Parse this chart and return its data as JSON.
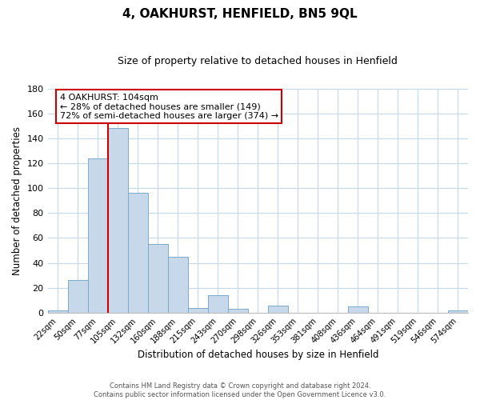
{
  "title": "4, OAKHURST, HENFIELD, BN5 9QL",
  "subtitle": "Size of property relative to detached houses in Henfield",
  "xlabel": "Distribution of detached houses by size in Henfield",
  "ylabel": "Number of detached properties",
  "bar_labels": [
    "22sqm",
    "50sqm",
    "77sqm",
    "105sqm",
    "132sqm",
    "160sqm",
    "188sqm",
    "215sqm",
    "243sqm",
    "270sqm",
    "298sqm",
    "326sqm",
    "353sqm",
    "381sqm",
    "408sqm",
    "436sqm",
    "464sqm",
    "491sqm",
    "519sqm",
    "546sqm",
    "574sqm"
  ],
  "bar_values": [
    2,
    26,
    124,
    148,
    96,
    55,
    45,
    4,
    14,
    3,
    0,
    6,
    0,
    0,
    0,
    5,
    0,
    0,
    0,
    0,
    2
  ],
  "bar_color": "#c8d8eb",
  "bar_edge_color": "#7aaacb",
  "vline_index": 3,
  "vline_color": "#cc0000",
  "ylim": [
    0,
    180
  ],
  "yticks": [
    0,
    20,
    40,
    60,
    80,
    100,
    120,
    140,
    160,
    180
  ],
  "annotation_text": "4 OAKHURST: 104sqm\n← 28% of detached houses are smaller (149)\n72% of semi-detached houses are larger (374) →",
  "annotation_box_facecolor": "#ffffff",
  "annotation_box_edgecolor": "#cc0000",
  "footer_line1": "Contains HM Land Registry data © Crown copyright and database right 2024.",
  "footer_line2": "Contains public sector information licensed under the Open Government Licence v3.0.",
  "background_color": "#ffffff",
  "grid_color": "#c5d8ea"
}
